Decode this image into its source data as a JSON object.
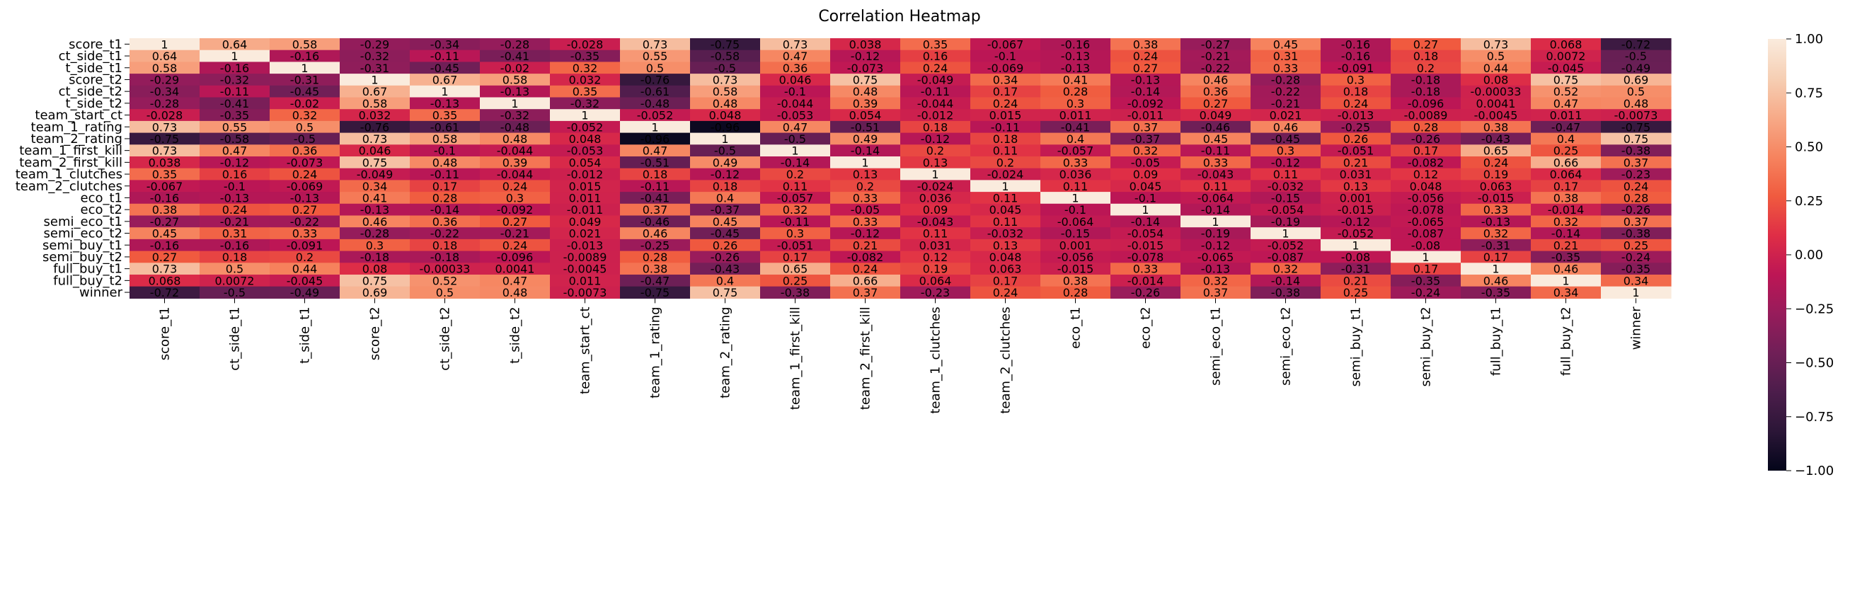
{
  "chart_data": {
    "type": "heatmap",
    "title": "Correlation Heatmap",
    "xlabel": "",
    "ylabel": "",
    "labels": [
      "score_t1",
      "ct_side_t1",
      "t_side_t1",
      "score_t2",
      "ct_side_t2",
      "t_side_t2",
      "team_start_ct",
      "team_1_rating",
      "team_2_rating",
      "team_1_first_kill",
      "team_2_first_kill",
      "team_1_clutches",
      "team_2_clutches",
      "eco_t1",
      "eco_t2",
      "semi_eco_t1",
      "semi_eco_t2",
      "semi_buy_t1",
      "semi_buy_t2",
      "full_buy_t1",
      "full_buy_t2",
      "winner"
    ],
    "matrix": [
      [
        "1",
        "0.64",
        "0.58",
        "-0.29",
        "-0.34",
        "-0.28",
        "-0.028",
        "0.73",
        "-0.75",
        "0.73",
        "0.038",
        "0.35",
        "-0.067",
        "-0.16",
        "0.38",
        "-0.27",
        "0.45",
        "-0.16",
        "0.27",
        "0.73",
        "0.068",
        "-0.72"
      ],
      [
        "0.64",
        "1",
        "-0.16",
        "-0.32",
        "-0.11",
        "-0.41",
        "-0.35",
        "0.55",
        "-0.58",
        "0.47",
        "-0.12",
        "0.16",
        "-0.1",
        "-0.13",
        "0.24",
        "-0.21",
        "0.31",
        "-0.16",
        "0.18",
        "0.5",
        "0.0072",
        "-0.5"
      ],
      [
        "0.58",
        "-0.16",
        "1",
        "-0.31",
        "-0.45",
        "-0.02",
        "0.32",
        "0.5",
        "-0.5",
        "0.36",
        "-0.073",
        "0.24",
        "-0.069",
        "-0.13",
        "0.27",
        "-0.22",
        "0.33",
        "-0.091",
        "0.2",
        "0.44",
        "-0.045",
        "-0.49"
      ],
      [
        "-0.29",
        "-0.32",
        "-0.31",
        "1",
        "0.67",
        "0.58",
        "0.032",
        "-0.76",
        "0.73",
        "0.046",
        "0.75",
        "-0.049",
        "0.34",
        "0.41",
        "-0.13",
        "0.46",
        "-0.28",
        "0.3",
        "-0.18",
        "0.08",
        "0.75",
        "0.69"
      ],
      [
        "-0.34",
        "-0.11",
        "-0.45",
        "0.67",
        "1",
        "-0.13",
        "0.35",
        "-0.61",
        "0.58",
        "-0.1",
        "0.48",
        "-0.11",
        "0.17",
        "0.28",
        "-0.14",
        "0.36",
        "-0.22",
        "0.18",
        "-0.18",
        "-0.00033",
        "0.52",
        "0.5"
      ],
      [
        "-0.28",
        "-0.41",
        "-0.02",
        "0.58",
        "-0.13",
        "1",
        "-0.32",
        "-0.48",
        "0.48",
        "-0.044",
        "0.39",
        "-0.044",
        "0.24",
        "0.3",
        "-0.092",
        "0.27",
        "-0.21",
        "0.24",
        "-0.096",
        "0.0041",
        "0.47",
        "0.48"
      ],
      [
        "-0.028",
        "-0.35",
        "0.32",
        "0.032",
        "0.35",
        "-0.32",
        "1",
        "-0.052",
        "0.048",
        "-0.053",
        "0.054",
        "-0.012",
        "0.015",
        "0.011",
        "-0.011",
        "0.049",
        "0.021",
        "-0.013",
        "-0.0089",
        "-0.0045",
        "0.011",
        "-0.0073"
      ],
      [
        "0.73",
        "0.55",
        "0.5",
        "-0.76",
        "-0.61",
        "-0.48",
        "-0.052",
        "1",
        "-0.96",
        "0.47",
        "-0.51",
        "0.18",
        "-0.11",
        "-0.41",
        "0.37",
        "-0.46",
        "0.46",
        "-0.25",
        "0.28",
        "0.38",
        "-0.47",
        "-0.75"
      ],
      [
        "-0.75",
        "-0.58",
        "-0.5",
        "0.73",
        "0.58",
        "0.48",
        "0.048",
        "-0.96",
        "1",
        "-0.5",
        "0.49",
        "-0.12",
        "0.18",
        "0.4",
        "-0.37",
        "0.45",
        "-0.45",
        "0.26",
        "-0.26",
        "-0.43",
        "0.4",
        "0.75"
      ],
      [
        "0.73",
        "0.47",
        "0.36",
        "0.046",
        "-0.1",
        "-0.044",
        "-0.053",
        "0.47",
        "-0.5",
        "1",
        "-0.14",
        "0.2",
        "0.11",
        "-0.057",
        "0.32",
        "-0.11",
        "0.3",
        "-0.051",
        "0.17",
        "0.65",
        "0.25",
        "-0.38"
      ],
      [
        "0.038",
        "-0.12",
        "-0.073",
        "0.75",
        "0.48",
        "0.39",
        "0.054",
        "-0.51",
        "0.49",
        "-0.14",
        "1",
        "0.13",
        "0.2",
        "0.33",
        "-0.05",
        "0.33",
        "-0.12",
        "0.21",
        "-0.082",
        "0.24",
        "0.66",
        "0.37"
      ],
      [
        "0.35",
        "0.16",
        "0.24",
        "-0.049",
        "-0.11",
        "-0.044",
        "-0.012",
        "0.18",
        "-0.12",
        "0.2",
        "0.13",
        "1",
        "-0.024",
        "0.036",
        "0.09",
        "-0.043",
        "0.11",
        "0.031",
        "0.12",
        "0.19",
        "0.064",
        "-0.23"
      ],
      [
        "-0.067",
        "-0.1",
        "-0.069",
        "0.34",
        "0.17",
        "0.24",
        "0.015",
        "-0.11",
        "0.18",
        "0.11",
        "0.2",
        "-0.024",
        "1",
        "0.11",
        "0.045",
        "0.11",
        "-0.032",
        "0.13",
        "0.048",
        "0.063",
        "0.17",
        "0.24"
      ],
      [
        "-0.16",
        "-0.13",
        "-0.13",
        "0.41",
        "0.28",
        "0.3",
        "0.011",
        "-0.41",
        "0.4",
        "-0.057",
        "0.33",
        "0.036",
        "0.11",
        "1",
        "-0.1",
        "-0.064",
        "-0.15",
        "0.001",
        "-0.056",
        "-0.015",
        "0.38",
        "0.28"
      ],
      [
        "0.38",
        "0.24",
        "0.27",
        "-0.13",
        "-0.14",
        "-0.092",
        "-0.011",
        "0.37",
        "-0.37",
        "0.32",
        "-0.05",
        "0.09",
        "0.045",
        "-0.1",
        "1",
        "-0.14",
        "-0.054",
        "-0.015",
        "-0.078",
        "0.33",
        "-0.014",
        "-0.26"
      ],
      [
        "-0.27",
        "-0.21",
        "-0.22",
        "0.46",
        "0.36",
        "0.27",
        "0.049",
        "-0.46",
        "0.45",
        "-0.11",
        "0.33",
        "-0.043",
        "0.11",
        "-0.064",
        "-0.14",
        "1",
        "-0.19",
        "-0.12",
        "-0.065",
        "-0.13",
        "0.32",
        "0.37"
      ],
      [
        "0.45",
        "0.31",
        "0.33",
        "-0.28",
        "-0.22",
        "-0.21",
        "0.021",
        "0.46",
        "-0.45",
        "0.3",
        "-0.12",
        "0.11",
        "-0.032",
        "-0.15",
        "-0.054",
        "-0.19",
        "1",
        "-0.052",
        "-0.087",
        "0.32",
        "-0.14",
        "-0.38"
      ],
      [
        "-0.16",
        "-0.16",
        "-0.091",
        "0.3",
        "0.18",
        "0.24",
        "-0.013",
        "-0.25",
        "0.26",
        "-0.051",
        "0.21",
        "0.031",
        "0.13",
        "0.001",
        "-0.015",
        "-0.12",
        "-0.052",
        "1",
        "-0.08",
        "-0.31",
        "0.21",
        "0.25"
      ],
      [
        "0.27",
        "0.18",
        "0.2",
        "-0.18",
        "-0.18",
        "-0.096",
        "-0.0089",
        "0.28",
        "-0.26",
        "0.17",
        "-0.082",
        "0.12",
        "0.048",
        "-0.056",
        "-0.078",
        "-0.065",
        "-0.087",
        "-0.08",
        "1",
        "0.17",
        "-0.35",
        "-0.24"
      ],
      [
        "0.73",
        "0.5",
        "0.44",
        "0.08",
        "-0.00033",
        "0.0041",
        "-0.0045",
        "0.38",
        "-0.43",
        "0.65",
        "0.24",
        "0.19",
        "0.063",
        "-0.015",
        "0.33",
        "-0.13",
        "0.32",
        "-0.31",
        "0.17",
        "1",
        "0.46",
        "-0.35"
      ],
      [
        "0.068",
        "0.0072",
        "-0.045",
        "0.75",
        "0.52",
        "0.47",
        "0.011",
        "-0.47",
        "0.4",
        "0.25",
        "0.66",
        "0.064",
        "0.17",
        "0.38",
        "-0.014",
        "0.32",
        "-0.14",
        "0.21",
        "-0.35",
        "0.46",
        "1",
        "0.34"
      ],
      [
        "-0.72",
        "-0.5",
        "-0.49",
        "0.69",
        "0.5",
        "0.48",
        "-0.0073",
        "-0.75",
        "0.75",
        "-0.38",
        "0.37",
        "-0.23",
        "0.24",
        "0.28",
        "-0.26",
        "0.37",
        "-0.38",
        "0.25",
        "-0.24",
        "-0.35",
        "0.34",
        "1"
      ]
    ],
    "vmin": -1,
    "vmax": 1,
    "colorbar_ticks": [
      "1.00",
      "0.75",
      "0.50",
      "0.25",
      "0.00",
      "−0.25",
      "−0.50",
      "−0.75",
      "−1.00"
    ],
    "colorbar_tick_values": [
      1,
      0.75,
      0.5,
      0.25,
      0,
      -0.25,
      -0.5,
      -0.75,
      -1
    ],
    "colormap": [
      "#03051a",
      "#2b1637",
      "#4c1d4b",
      "#701f57",
      "#971c5b",
      "#bd1655",
      "#df2e46",
      "#f05b3f",
      "#f6845f",
      "#f7aa88",
      "#f6cfb4",
      "#faebdd"
    ],
    "grid": false,
    "legend": "colorbar-right"
  }
}
